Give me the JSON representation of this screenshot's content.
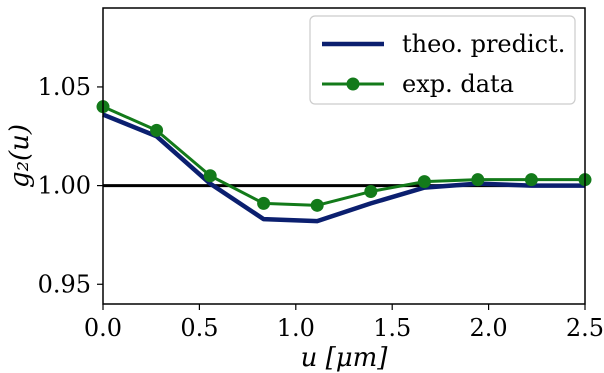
{
  "chart_data": {
    "type": "line",
    "title": "",
    "xlabel": "u [μm]",
    "ylabel": "g₂(u)",
    "xlim": [
      0.0,
      2.5
    ],
    "ylim": [
      0.94,
      1.09
    ],
    "x_ticks": [
      0.0,
      0.5,
      1.0,
      1.5,
      2.0,
      2.5
    ],
    "x_tick_labels": [
      "0.0",
      "0.5",
      "1.0",
      "1.5",
      "2.0",
      "2.5"
    ],
    "y_ticks": [
      0.95,
      1.0,
      1.05
    ],
    "y_tick_labels": [
      "0.95",
      "1.00",
      "1.05"
    ],
    "reference_line": {
      "y": 1.0,
      "color": "#000000"
    },
    "grid": false,
    "legend_position": "top-right",
    "series": [
      {
        "name": "theo. predict.",
        "color": "#0b1f6f",
        "marker": "none",
        "x": [
          0.0,
          0.278,
          0.556,
          0.833,
          1.111,
          1.389,
          1.667,
          1.944,
          2.222,
          2.5
        ],
        "y": [
          1.036,
          1.025,
          1.001,
          0.983,
          0.982,
          0.991,
          0.999,
          1.001,
          1.0,
          1.0
        ]
      },
      {
        "name": "exp. data",
        "color": "#137a1a",
        "marker": "circle",
        "x": [
          0.0,
          0.278,
          0.556,
          0.833,
          1.111,
          1.389,
          1.667,
          1.944,
          2.222,
          2.5
        ],
        "y": [
          1.04,
          1.028,
          1.005,
          0.991,
          0.99,
          0.997,
          1.002,
          1.003,
          1.003,
          1.003
        ]
      }
    ]
  }
}
